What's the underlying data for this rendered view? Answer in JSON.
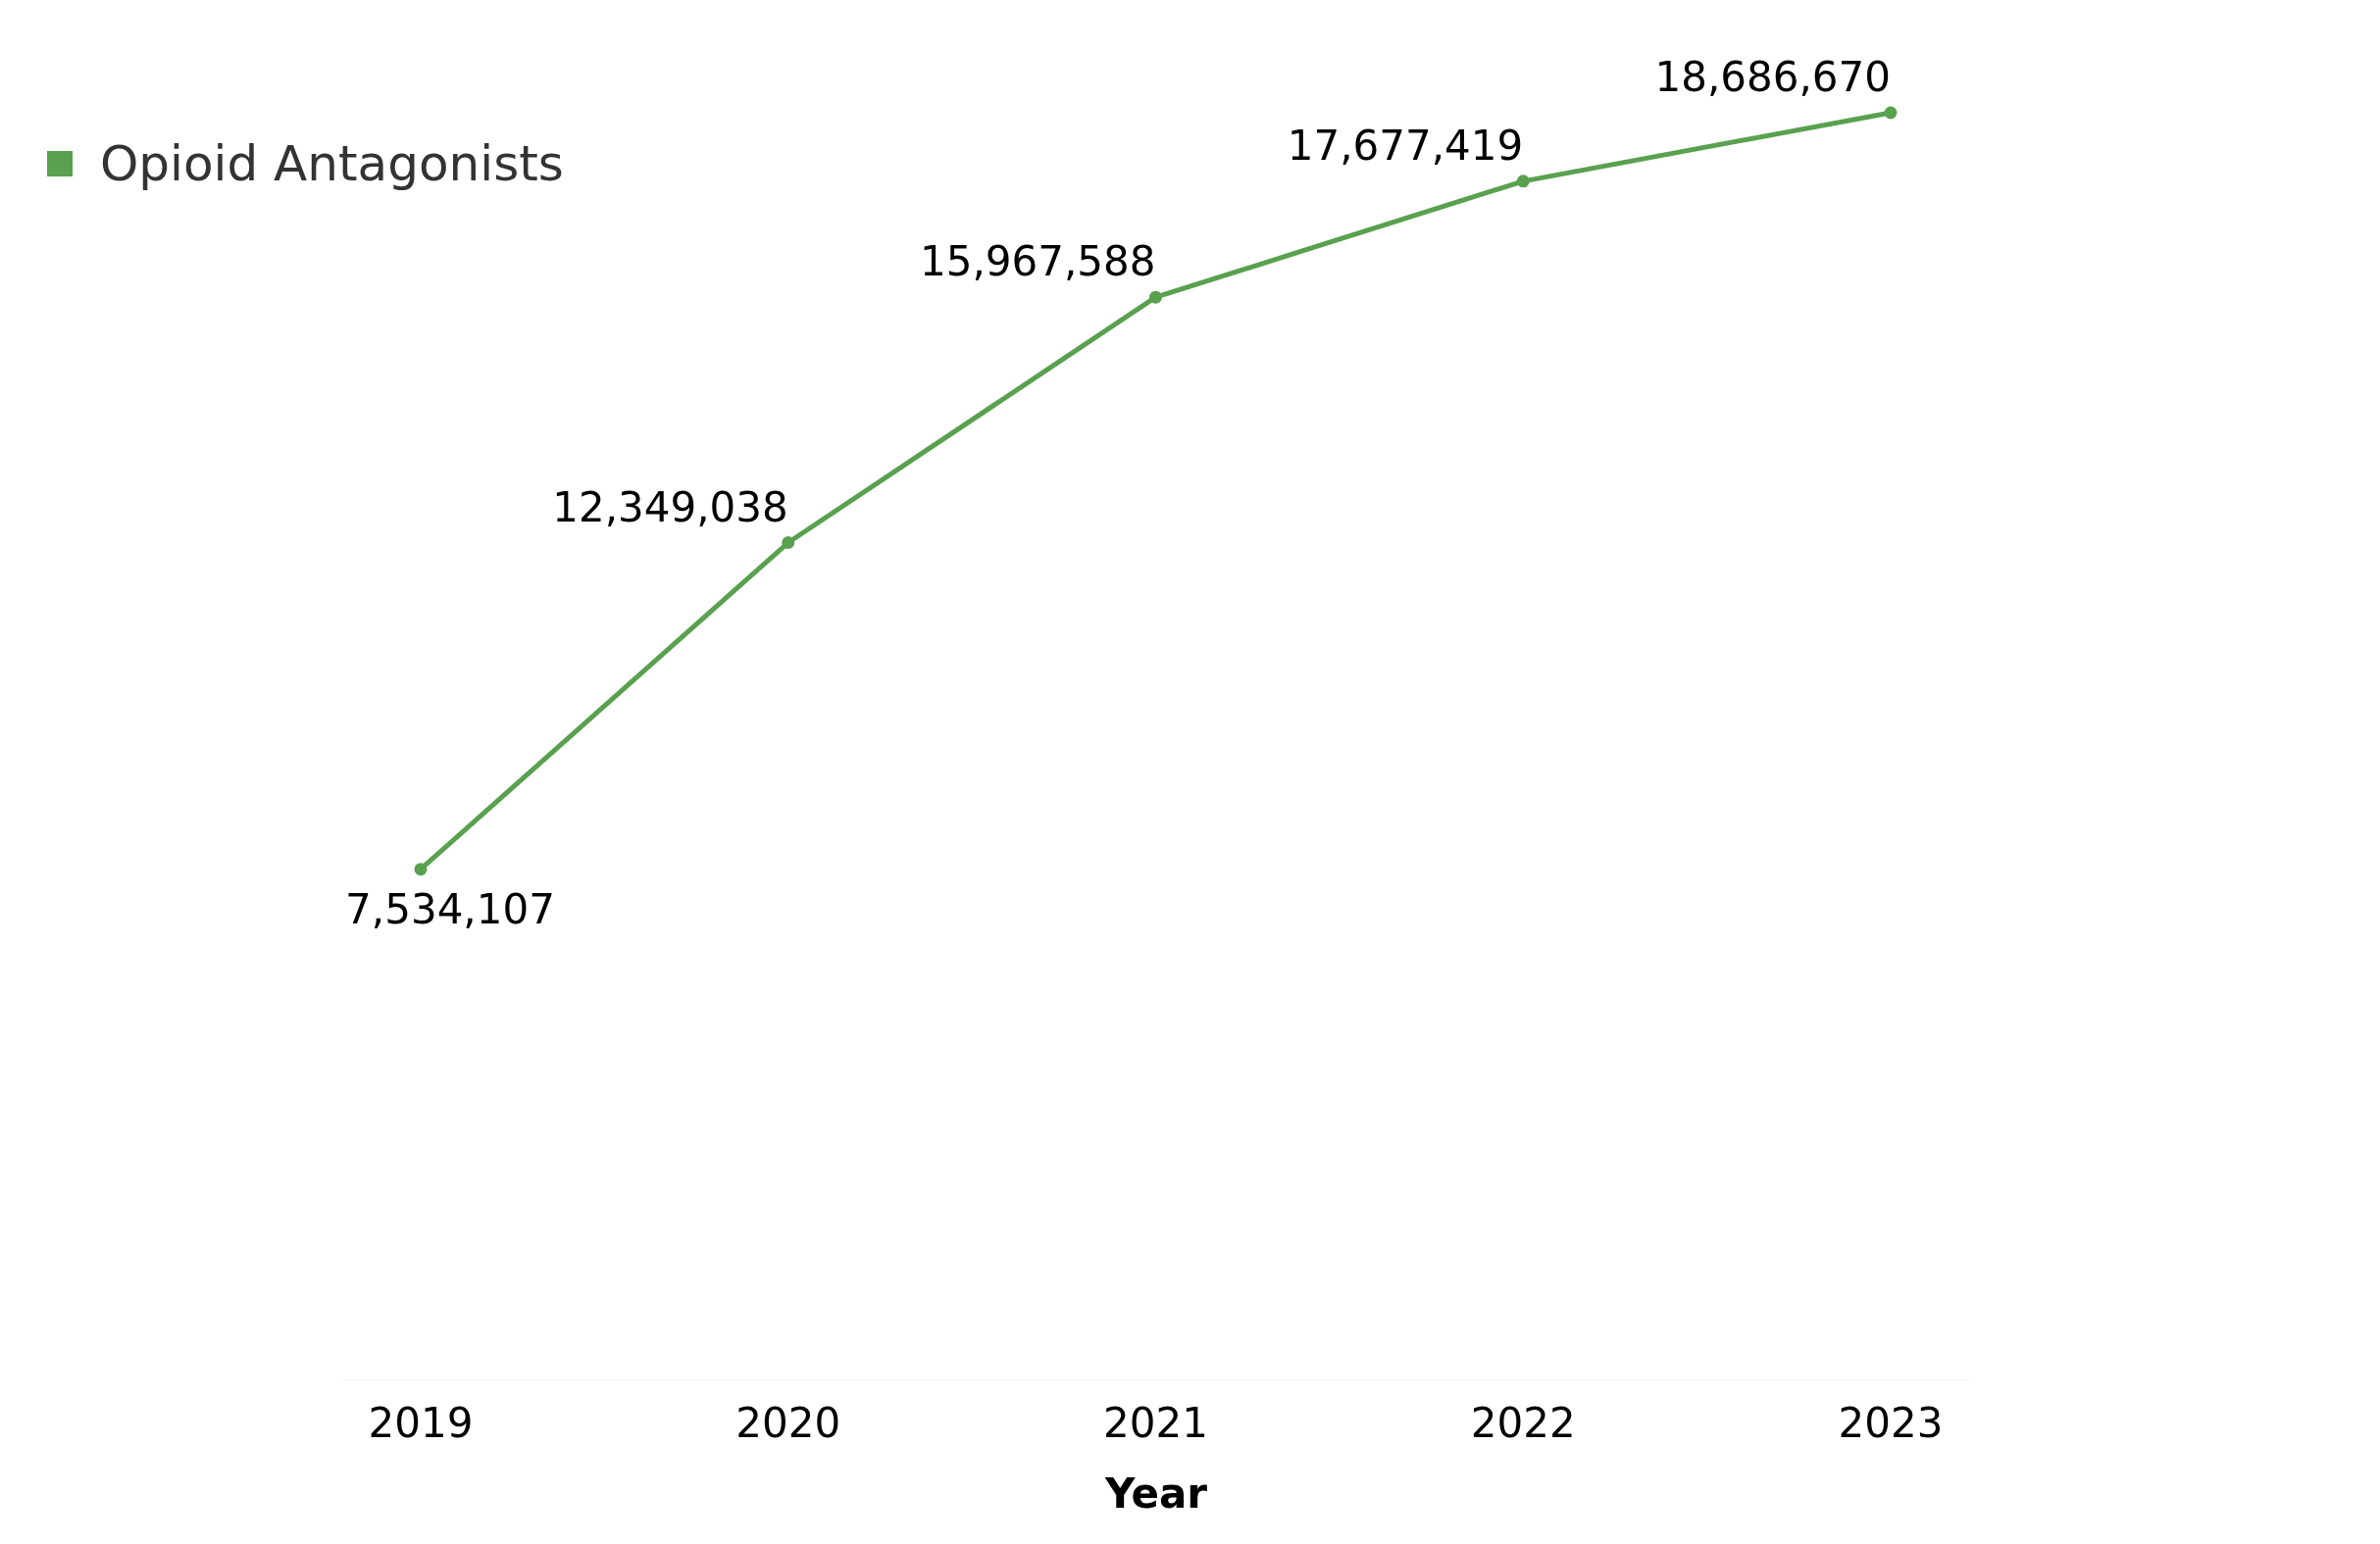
{
  "chart_data": {
    "type": "line",
    "xlabel": "Year",
    "categories": [
      "2019",
      "2020",
      "2021",
      "2022",
      "2023"
    ],
    "series": [
      {
        "name": "Opioid Antagonists",
        "color": "#59a14f",
        "values": [
          7534107,
          12349038,
          15967588,
          17677419,
          18686670
        ],
        "value_labels": [
          "7,534,107",
          "12,349,038",
          "15,967,588",
          "17,677,419",
          "18,686,670"
        ]
      }
    ],
    "relative": false,
    "legend": "top left",
    "marker": "circle",
    "line_style": "solid"
  }
}
